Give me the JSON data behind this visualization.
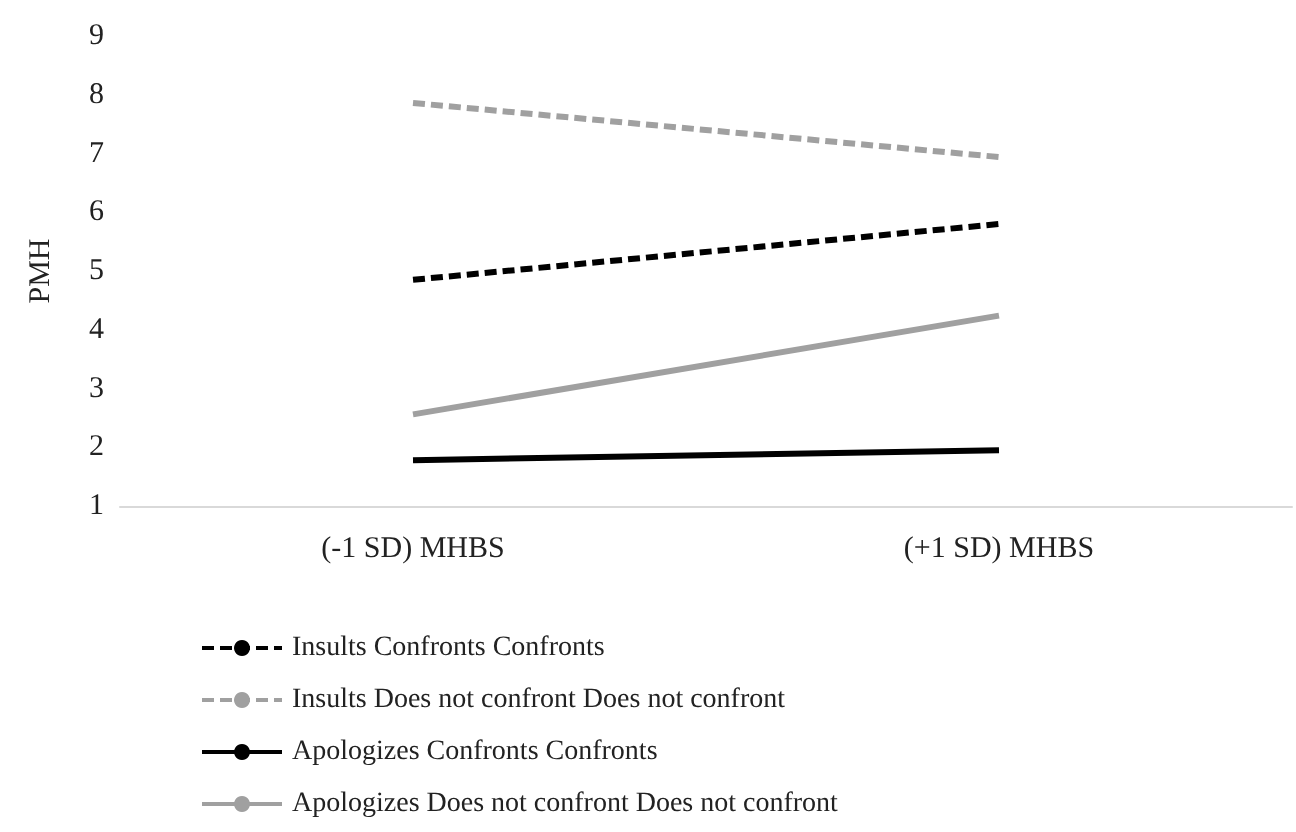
{
  "chart_data": {
    "type": "line",
    "ylabel": "PMH",
    "categories": [
      "(-1 SD) MHBS",
      "(+1 SD) MHBS"
    ],
    "ylim": [
      1,
      9
    ],
    "yticks": [
      1,
      2,
      3,
      4,
      5,
      6,
      7,
      8,
      9
    ],
    "grid": false,
    "legend": "bottom",
    "marker": "none",
    "series": [
      {
        "name": "Insults Confronts Confronts",
        "color": "#000000",
        "line_style": "dashed",
        "values": [
          4.85,
          5.8
        ]
      },
      {
        "name": "Insults Does not confront Does not confront",
        "color": "#a0a0a0",
        "line_style": "dashed",
        "values": [
          7.86,
          6.94
        ]
      },
      {
        "name": "Apologizes Confronts Confronts",
        "color": "#000000",
        "line_style": "solid",
        "values": [
          1.78,
          1.95
        ]
      },
      {
        "name": "Apologizes Does not confront Does not confront",
        "color": "#a0a0a0",
        "line_style": "solid",
        "values": [
          2.56,
          4.24
        ]
      }
    ]
  }
}
